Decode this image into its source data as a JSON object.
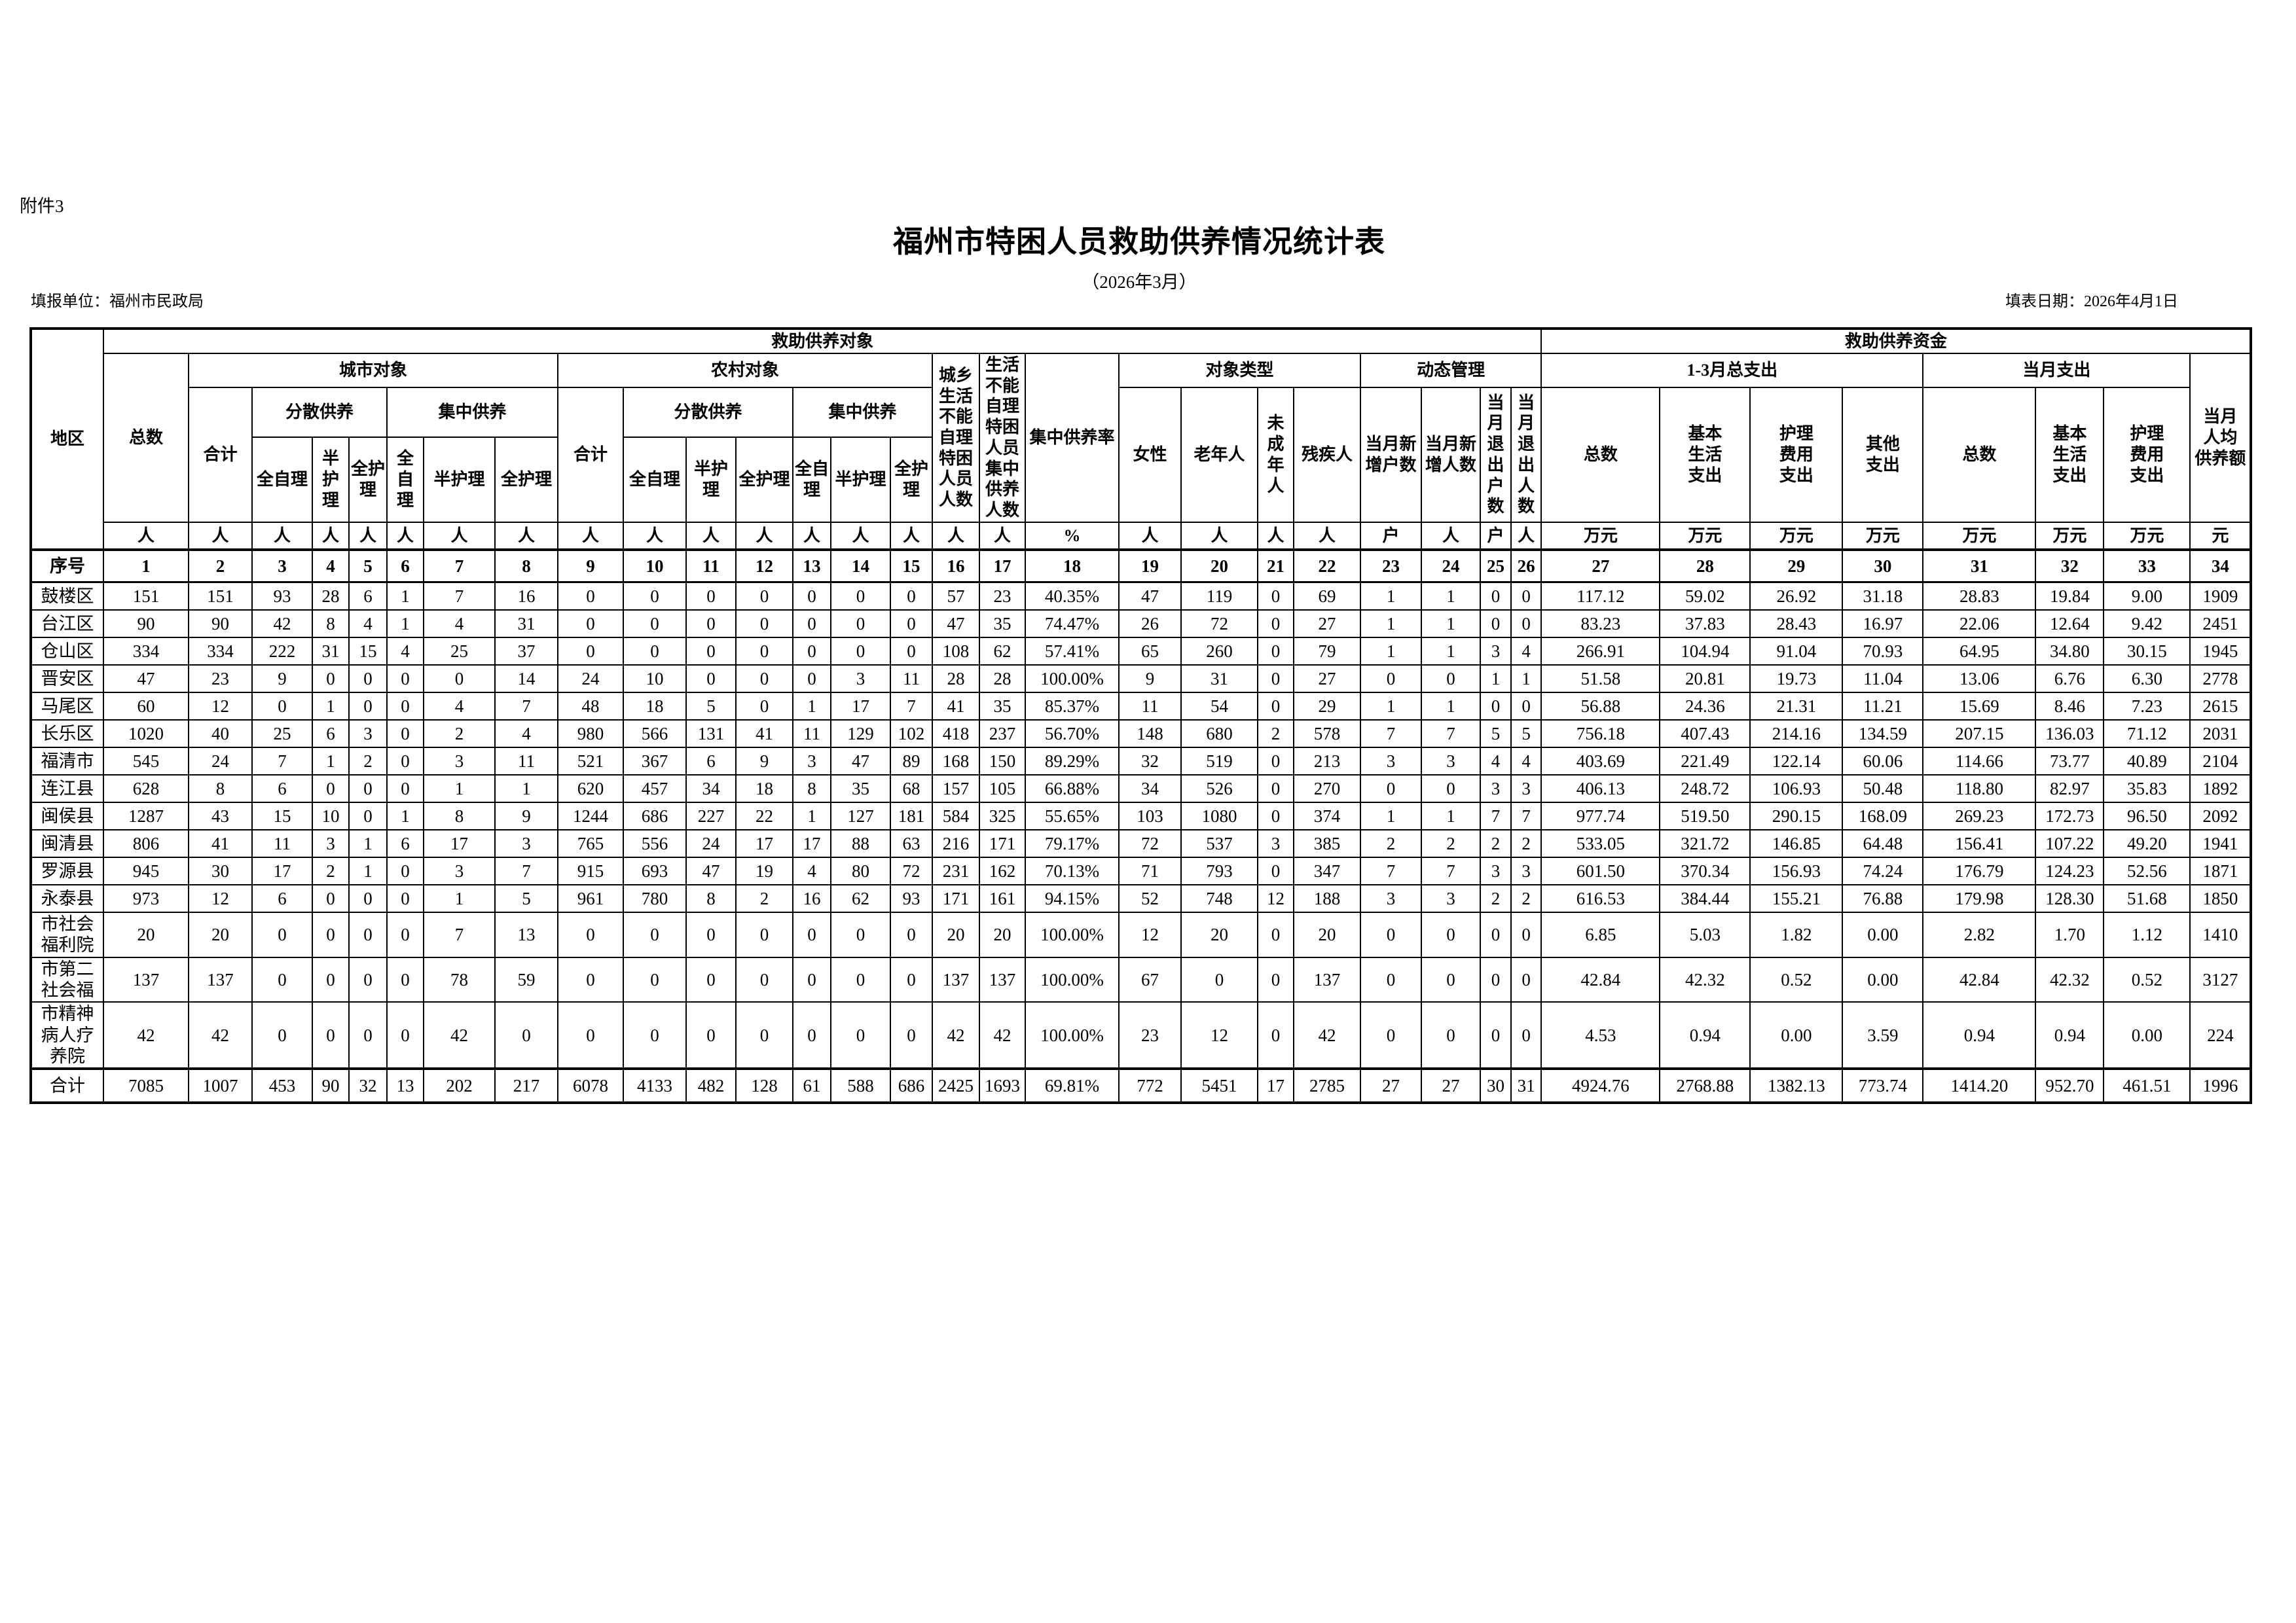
{
  "attachment_label": "附件3",
  "title": "福州市特困人员救助供养情况统计表",
  "subtitle": "（2026年3月）",
  "report_unit": "填报单位：福州市民政局",
  "report_date": "填表日期：2026年4月1日",
  "table": {
    "region_label": "地区",
    "serial_label": "序号",
    "groups": {
      "targets": "救助供养对象",
      "funds": "救助供养资金",
      "urban": "城市对象",
      "rural": "农村对象",
      "dispersed_urban": "分散供养",
      "centralized_urban": "集中供养",
      "dispersed_rural": "分散供养",
      "centralized_rural": "集中供养",
      "category": "对象类型",
      "dynamic": "动态管理",
      "q1_total": "1-3月总支出",
      "month": "当月支出"
    },
    "columns": {
      "c01": "总数",
      "c02": "合计",
      "c03": "全自理",
      "c04": "半护\n理",
      "c05": "全护\n理",
      "c06": "全自\n理",
      "c07": "半护理",
      "c08": "全护理",
      "c09": "合计",
      "c10": "全自理",
      "c11": "半护\n理",
      "c12": "全护理",
      "c13": "全自\n理",
      "c14": "半护理",
      "c15": "全护\n理",
      "c16": "城乡\n生活\n不能\n自理\n特困\n人员\n人数",
      "c17": "生活\n不能\n自理\n特困\n人员\n集中\n供养\n人数",
      "c18": "集中供养率",
      "c19": "女性",
      "c20": "老年人",
      "c21": "未成\n年人",
      "c22": "残疾人",
      "c23": "当月新\n增户数",
      "c24": "当月新\n增人数",
      "c25": "当\n月\n退\n出\n户\n数",
      "c26": "当月\n退出\n人数",
      "c27": "总数",
      "c28": "基本\n生活\n支出",
      "c29": "护理\n费用\n支出",
      "c30": "其他\n支出",
      "c31": "总数",
      "c32": "基本\n生活\n支出",
      "c33": "护理\n费用\n支出",
      "c34": "当月\n人均\n供养额"
    },
    "units": [
      "人",
      "人",
      "人",
      "人",
      "人",
      "人",
      "人",
      "人",
      "人",
      "人",
      "人",
      "人",
      "人",
      "人",
      "人",
      "人",
      "人",
      "%",
      "人",
      "人",
      "人",
      "人",
      "户",
      "人",
      "户",
      "人",
      "万元",
      "万元",
      "万元",
      "万元",
      "万元",
      "万元",
      "万元",
      "元"
    ],
    "serials": [
      "1",
      "2",
      "3",
      "4",
      "5",
      "6",
      "7",
      "8",
      "9",
      "10",
      "11",
      "12",
      "13",
      "14",
      "15",
      "16",
      "17",
      "18",
      "19",
      "20",
      "21",
      "22",
      "23",
      "24",
      "25",
      "26",
      "27",
      "28",
      "29",
      "30",
      "31",
      "32",
      "33",
      "34"
    ],
    "rows": [
      {
        "region": "鼓楼区",
        "values": [
          "151",
          "151",
          "93",
          "28",
          "6",
          "1",
          "7",
          "16",
          "0",
          "0",
          "0",
          "0",
          "0",
          "0",
          "0",
          "57",
          "23",
          "40.35%",
          "47",
          "119",
          "0",
          "69",
          "1",
          "1",
          "0",
          "0",
          "117.12",
          "59.02",
          "26.92",
          "31.18",
          "28.83",
          "19.84",
          "9.00",
          "1909"
        ]
      },
      {
        "region": "台江区",
        "values": [
          "90",
          "90",
          "42",
          "8",
          "4",
          "1",
          "4",
          "31",
          "0",
          "0",
          "0",
          "0",
          "0",
          "0",
          "0",
          "47",
          "35",
          "74.47%",
          "26",
          "72",
          "0",
          "27",
          "1",
          "1",
          "0",
          "0",
          "83.23",
          "37.83",
          "28.43",
          "16.97",
          "22.06",
          "12.64",
          "9.42",
          "2451"
        ]
      },
      {
        "region": "仓山区",
        "values": [
          "334",
          "334",
          "222",
          "31",
          "15",
          "4",
          "25",
          "37",
          "0",
          "0",
          "0",
          "0",
          "0",
          "0",
          "0",
          "108",
          "62",
          "57.41%",
          "65",
          "260",
          "0",
          "79",
          "1",
          "1",
          "3",
          "4",
          "266.91",
          "104.94",
          "91.04",
          "70.93",
          "64.95",
          "34.80",
          "30.15",
          "1945"
        ]
      },
      {
        "region": "晋安区",
        "values": [
          "47",
          "23",
          "9",
          "0",
          "0",
          "0",
          "0",
          "14",
          "24",
          "10",
          "0",
          "0",
          "0",
          "3",
          "11",
          "28",
          "28",
          "100.00%",
          "9",
          "31",
          "0",
          "27",
          "0",
          "0",
          "1",
          "1",
          "51.58",
          "20.81",
          "19.73",
          "11.04",
          "13.06",
          "6.76",
          "6.30",
          "2778"
        ]
      },
      {
        "region": "马尾区",
        "values": [
          "60",
          "12",
          "0",
          "1",
          "0",
          "0",
          "4",
          "7",
          "48",
          "18",
          "5",
          "0",
          "1",
          "17",
          "7",
          "41",
          "35",
          "85.37%",
          "11",
          "54",
          "0",
          "29",
          "1",
          "1",
          "0",
          "0",
          "56.88",
          "24.36",
          "21.31",
          "11.21",
          "15.69",
          "8.46",
          "7.23",
          "2615"
        ]
      },
      {
        "region": "长乐区",
        "values": [
          "1020",
          "40",
          "25",
          "6",
          "3",
          "0",
          "2",
          "4",
          "980",
          "566",
          "131",
          "41",
          "11",
          "129",
          "102",
          "418",
          "237",
          "56.70%",
          "148",
          "680",
          "2",
          "578",
          "7",
          "7",
          "5",
          "5",
          "756.18",
          "407.43",
          "214.16",
          "134.59",
          "207.15",
          "136.03",
          "71.12",
          "2031"
        ]
      },
      {
        "region": "福清市",
        "values": [
          "545",
          "24",
          "7",
          "1",
          "2",
          "0",
          "3",
          "11",
          "521",
          "367",
          "6",
          "9",
          "3",
          "47",
          "89",
          "168",
          "150",
          "89.29%",
          "32",
          "519",
          "0",
          "213",
          "3",
          "3",
          "4",
          "4",
          "403.69",
          "221.49",
          "122.14",
          "60.06",
          "114.66",
          "73.77",
          "40.89",
          "2104"
        ]
      },
      {
        "region": "连江县",
        "values": [
          "628",
          "8",
          "6",
          "0",
          "0",
          "0",
          "1",
          "1",
          "620",
          "457",
          "34",
          "18",
          "8",
          "35",
          "68",
          "157",
          "105",
          "66.88%",
          "34",
          "526",
          "0",
          "270",
          "0",
          "0",
          "3",
          "3",
          "406.13",
          "248.72",
          "106.93",
          "50.48",
          "118.80",
          "82.97",
          "35.83",
          "1892"
        ]
      },
      {
        "region": "闽侯县",
        "values": [
          "1287",
          "43",
          "15",
          "10",
          "0",
          "1",
          "8",
          "9",
          "1244",
          "686",
          "227",
          "22",
          "1",
          "127",
          "181",
          "584",
          "325",
          "55.65%",
          "103",
          "1080",
          "0",
          "374",
          "1",
          "1",
          "7",
          "7",
          "977.74",
          "519.50",
          "290.15",
          "168.09",
          "269.23",
          "172.73",
          "96.50",
          "2092"
        ]
      },
      {
        "region": "闽清县",
        "values": [
          "806",
          "41",
          "11",
          "3",
          "1",
          "6",
          "17",
          "3",
          "765",
          "556",
          "24",
          "17",
          "17",
          "88",
          "63",
          "216",
          "171",
          "79.17%",
          "72",
          "537",
          "3",
          "385",
          "2",
          "2",
          "2",
          "2",
          "533.05",
          "321.72",
          "146.85",
          "64.48",
          "156.41",
          "107.22",
          "49.20",
          "1941"
        ]
      },
      {
        "region": "罗源县",
        "values": [
          "945",
          "30",
          "17",
          "2",
          "1",
          "0",
          "3",
          "7",
          "915",
          "693",
          "47",
          "19",
          "4",
          "80",
          "72",
          "231",
          "162",
          "70.13%",
          "71",
          "793",
          "0",
          "347",
          "7",
          "7",
          "3",
          "3",
          "601.50",
          "370.34",
          "156.93",
          "74.24",
          "176.79",
          "124.23",
          "52.56",
          "1871"
        ]
      },
      {
        "region": "永泰县",
        "values": [
          "973",
          "12",
          "6",
          "0",
          "0",
          "0",
          "1",
          "5",
          "961",
          "780",
          "8",
          "2",
          "16",
          "62",
          "93",
          "171",
          "161",
          "94.15%",
          "52",
          "748",
          "12",
          "188",
          "3",
          "3",
          "2",
          "2",
          "616.53",
          "384.44",
          "155.21",
          "76.88",
          "179.98",
          "128.30",
          "51.68",
          "1850"
        ]
      },
      {
        "region": "市社会福利院",
        "values": [
          "20",
          "20",
          "0",
          "0",
          "0",
          "0",
          "7",
          "13",
          "0",
          "0",
          "0",
          "0",
          "0",
          "0",
          "0",
          "20",
          "20",
          "100.00%",
          "12",
          "20",
          "0",
          "20",
          "0",
          "0",
          "0",
          "0",
          "6.85",
          "5.03",
          "1.82",
          "0.00",
          "2.82",
          "1.70",
          "1.12",
          "1410"
        ]
      },
      {
        "region": "市第二社会福",
        "values": [
          "137",
          "137",
          "0",
          "0",
          "0",
          "0",
          "78",
          "59",
          "0",
          "0",
          "0",
          "0",
          "0",
          "0",
          "0",
          "137",
          "137",
          "100.00%",
          "67",
          "0",
          "0",
          "137",
          "0",
          "0",
          "0",
          "0",
          "42.84",
          "42.32",
          "0.52",
          "0.00",
          "42.84",
          "42.32",
          "0.52",
          "3127"
        ]
      },
      {
        "region": "市精神病人疗养院",
        "values": [
          "42",
          "42",
          "0",
          "0",
          "0",
          "0",
          "42",
          "0",
          "0",
          "0",
          "0",
          "0",
          "0",
          "0",
          "0",
          "42",
          "42",
          "100.00%",
          "23",
          "12",
          "0",
          "42",
          "0",
          "0",
          "0",
          "0",
          "4.53",
          "0.94",
          "0.00",
          "3.59",
          "0.94",
          "0.94",
          "0.00",
          "224"
        ]
      },
      {
        "region": "合计",
        "is_total": true,
        "values": [
          "7085",
          "1007",
          "453",
          "90",
          "32",
          "13",
          "202",
          "217",
          "6078",
          "4133",
          "482",
          "128",
          "61",
          "588",
          "686",
          "2425",
          "1693",
          "69.81%",
          "772",
          "5451",
          "17",
          "2785",
          "27",
          "27",
          "30",
          "31",
          "4924.76",
          "2768.88",
          "1382.13",
          "773.74",
          "1414.20",
          "952.70",
          "461.51",
          "1996"
        ]
      }
    ]
  }
}
